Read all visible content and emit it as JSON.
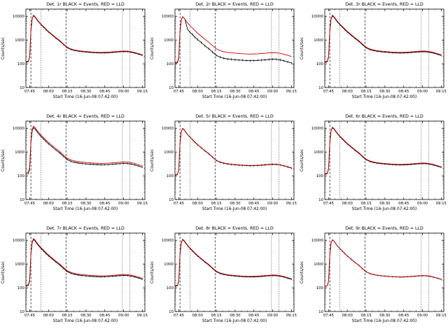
{
  "page": {
    "background": "#ffffff"
  },
  "chart_data": {
    "type": "line",
    "layout": "3x3-grid",
    "shared": {
      "ylabel": "Counts/sec",
      "xlabel": "Start Time (16-Jun-08 07:42:00)",
      "x_tick_labels": [
        "07:45",
        "08:00",
        "08:15",
        "08:30",
        "08:45",
        "09:00",
        "09:15"
      ],
      "x_tick_minutes": [
        3,
        18,
        33,
        48,
        63,
        78,
        93
      ],
      "x_range_minutes": [
        0,
        95
      ],
      "y_ticks": [
        10,
        100,
        1000,
        10000
      ],
      "y_range": [
        10,
        20000
      ],
      "y_scale": "log",
      "grid": false,
      "legend_note": "BLACK = Events, RED = LLD",
      "series_colors": {
        "events": "#000000",
        "lld": "#cc0000"
      },
      "x_minutes": [
        0,
        1,
        2,
        3,
        4,
        5,
        6,
        7,
        8,
        10,
        12,
        14,
        16,
        18,
        21,
        24,
        27,
        30,
        33,
        36,
        39,
        42,
        45,
        48,
        51,
        54,
        57,
        60,
        63,
        66,
        69,
        72,
        75,
        78,
        81,
        84,
        87,
        90,
        93
      ],
      "lld_base": [
        120,
        125,
        130,
        200,
        2500,
        8000,
        11000,
        10200,
        8600,
        6200,
        4700,
        3700,
        2900,
        2300,
        1700,
        1250,
        950,
        680,
        500,
        420,
        380,
        355,
        340,
        328,
        318,
        310,
        305,
        300,
        303,
        308,
        316,
        326,
        336,
        344,
        340,
        322,
        296,
        266,
        238
      ],
      "vlines": [
        {
          "style": "dashed",
          "minute": 4
        },
        {
          "style": "dotted",
          "minute": 12
        },
        {
          "style": "dashed",
          "minute": 32
        },
        {
          "style": "dotted",
          "minute": 77
        },
        {
          "style": "dotted",
          "minute": 83
        }
      ]
    },
    "charts": [
      {
        "det": 1,
        "title": "Det. 1r BLACK = Events, RED = LLD",
        "lld_scale": 1.0,
        "events_scale": 0.95,
        "err": 1.08
      },
      {
        "det": 2,
        "title": "Det. 2r BLACK = Events, RED = LLD",
        "lld_scale": 0.85,
        "err": 1.12,
        "events": [
          110,
          115,
          120,
          180,
          2200,
          7000,
          9500,
          8800,
          7400,
          2800,
          2100,
          1700,
          1300,
          1050,
          780,
          560,
          430,
          310,
          225,
          190,
          170,
          160,
          153,
          148,
          143,
          140,
          137,
          135,
          136,
          139,
          142,
          147,
          151,
          155,
          153,
          145,
          133,
          120,
          107
        ]
      },
      {
        "det": 3,
        "title": "Det. 3r BLACK = Events, RED = LLD",
        "lld_scale": 1.0,
        "events_scale": 0.94,
        "err": 1.08
      },
      {
        "det": 4,
        "title": "Det. 4r BLACK = Events, RED = LLD",
        "lld_scale": 1.1,
        "events_scale": 0.96,
        "err": 1.08
      },
      {
        "det": 5,
        "title": "Det. 5r BLACK = Events, RED = LLD",
        "lld_scale": 0.9,
        "events_scale": 0.88,
        "err": 1.1
      },
      {
        "det": 6,
        "title": "Det. 6r BLACK = Events, RED = LLD",
        "lld_scale": 1.0,
        "events_scale": 0.95,
        "err": 1.08
      },
      {
        "det": 7,
        "title": "Det. 7r BLACK = Events, RED = LLD",
        "lld_scale": 1.05,
        "events_scale": 0.96,
        "err": 1.08
      },
      {
        "det": 8,
        "title": "Det. 8r BLACK = Events, RED = LLD",
        "lld_scale": 1.0,
        "events_scale": 0.95,
        "err": 1.08
      },
      {
        "det": 9,
        "title": "Det. 9r BLACK = Events, RED = LLD",
        "lld_scale": 0.95,
        "events_scale": 0.94,
        "err": 1.08
      }
    ]
  }
}
